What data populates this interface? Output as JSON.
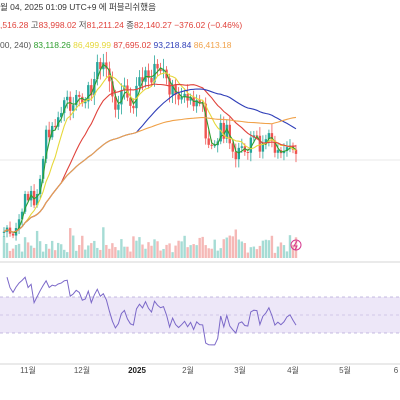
{
  "header": {
    "line1": "월 04, 2025 01:09 UTC+9 에 퍼블리쉬했음",
    "open_value": ",516.28",
    "high_label": "고",
    "high_value": "83,998.02",
    "low_label": "저",
    "low_value": "81,211.24",
    "close_label": "종",
    "close_value": "82,140.27",
    "change": "−376.02 (−0.46%)",
    "ma_settings": "00, 240)",
    "ma_values": [
      {
        "text": "83,118.26",
        "color": "#2e9e2e"
      },
      {
        "text": "86,499.99",
        "color": "#e6d83a"
      },
      {
        "text": "87,695.02",
        "color": "#e0423b"
      },
      {
        "text": "93,218.84",
        "color": "#2f3eb8"
      },
      {
        "text": "86,413.18",
        "color": "#f0a24a"
      }
    ]
  },
  "chart_data": {
    "type": "candlestick",
    "x_ticks": [
      "11월",
      "12월",
      "2025",
      "2월",
      "3월",
      "4월",
      "5월",
      "6"
    ],
    "close_series": [
      61500,
      62600,
      61000,
      60500,
      62500,
      64800,
      66800,
      71500,
      69800,
      72300,
      68500,
      71500,
      75500,
      80800,
      88500,
      86500,
      89500,
      89300,
      91800,
      92900,
      96300,
      97200,
      93500,
      95000,
      97700,
      97200,
      95500,
      96000,
      100300,
      97600,
      101900,
      106400,
      104500,
      106300,
      104700,
      101300,
      97300,
      93800,
      95200,
      98900,
      100200,
      97000,
      94800,
      94200,
      100100,
      102400,
      101200,
      104200,
      102200,
      101000,
      105900,
      104700,
      104000,
      104400,
      102100,
      97800,
      100400,
      97800,
      96500,
      97200,
      98000,
      96200,
      97100,
      94700,
      96300,
      95500,
      95400,
      86200,
      84500,
      84400,
      84400,
      85400,
      90300,
      86100,
      89800,
      84900,
      82700,
      80700,
      83700,
      84100,
      82600,
      82400,
      86400,
      87000,
      86900,
      82700,
      85000,
      86000,
      87600,
      85600,
      82400,
      83100,
      82300,
      82900,
      83900,
      84300,
      83200,
      82100
    ],
    "ma_lines": [
      {
        "color": "#2e9e2e"
      },
      {
        "color": "#e6d83a"
      },
      {
        "color": "#e0423b"
      },
      {
        "color": "#2f3eb8"
      },
      {
        "color": "#f0a24a"
      }
    ],
    "up_color": "#26a69a",
    "down_color": "#ef5350",
    "rsi": {
      "line_color": "#7b68c8",
      "band_fill": "#ede7f8",
      "upper": 70,
      "mid": 50,
      "lower": 30
    }
  }
}
